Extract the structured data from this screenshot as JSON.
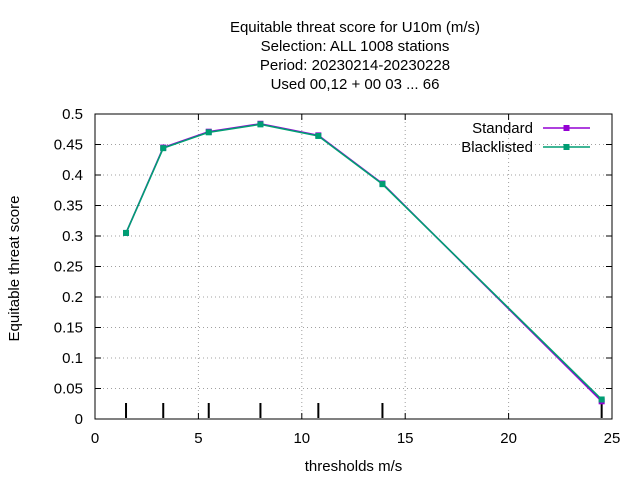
{
  "chart_data": {
    "type": "line",
    "title_lines": [
      "Equitable threat score  for U10m (m/s)",
      "Selection: ALL   1008 stations",
      "Period: 20230214-20230228",
      "Used  00,12  + 00 03 ... 66"
    ],
    "xlabel": "thresholds m/s",
    "ylabel": "Equitable threat score",
    "xlim": [
      0,
      25
    ],
    "ylim": [
      0,
      0.5
    ],
    "x_ticks": [
      "0",
      "5",
      "10",
      "15",
      "20",
      "25"
    ],
    "y_ticks": [
      "0",
      "0.05",
      "0.1",
      "0.15",
      "0.2",
      "0.25",
      "0.3",
      "0.35",
      "0.4",
      "0.45",
      "0.5"
    ],
    "grid": true,
    "legend_position": "top-right",
    "threshold_markers": [
      1.5,
      3.3,
      5.5,
      8,
      10.8,
      13.9,
      24.5
    ],
    "series": [
      {
        "name": "Standard",
        "color": "#9400d3",
        "x": [
          1.5,
          3.3,
          5.5,
          8,
          10.8,
          13.9,
          24.5
        ],
        "y": [
          0.305,
          0.445,
          0.471,
          0.484,
          0.465,
          0.386,
          0.029
        ]
      },
      {
        "name": "Blacklisted",
        "color": "#009e73",
        "x": [
          1.5,
          3.3,
          5.5,
          8,
          10.8,
          13.9,
          24.5
        ],
        "y": [
          0.305,
          0.444,
          0.47,
          0.483,
          0.464,
          0.385,
          0.032
        ]
      }
    ]
  }
}
